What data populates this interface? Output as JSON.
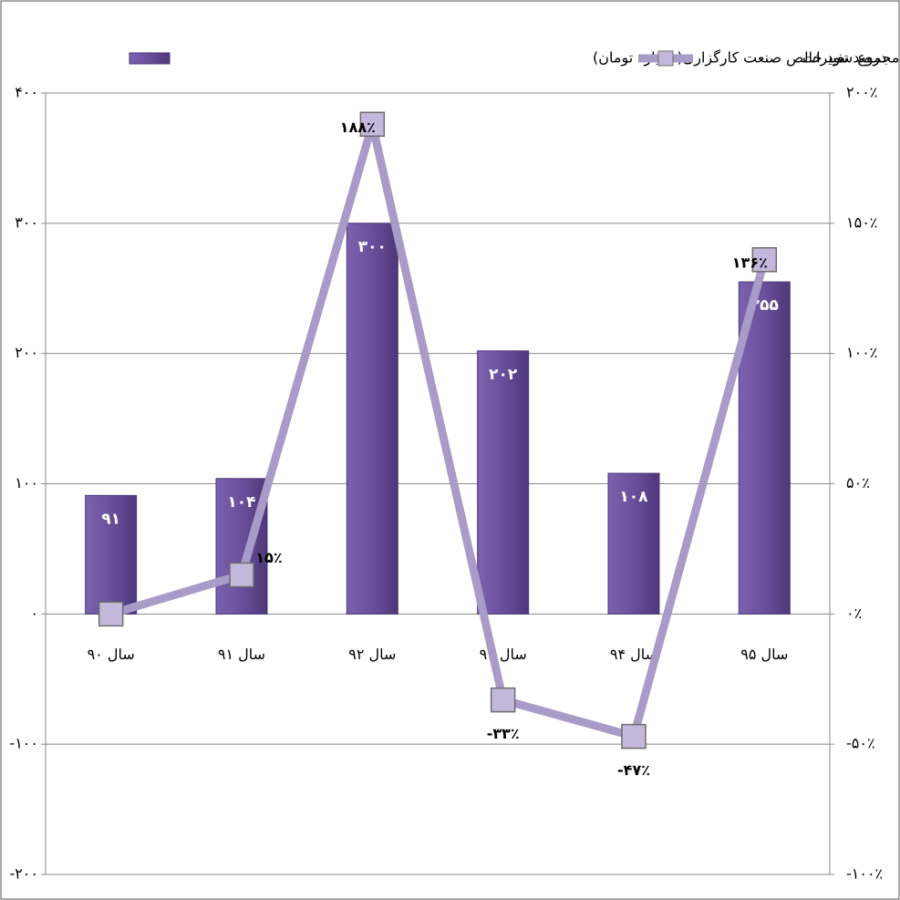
{
  "chart_data": {
    "type": "bar_line",
    "categories": [
      "سال ۹۰",
      "سال ۹۱",
      "سال ۹۲",
      "سال ۹۳",
      "سال ۹۴",
      "سال ۹۵"
    ],
    "series": [
      {
        "name": "مجموع سود خالص صنعت کارگزاری(میلیارد تومان)",
        "type": "bar",
        "color": "#6a4f9c",
        "values": [
          91,
          104,
          300,
          202,
          108,
          255
        ],
        "value_labels": [
          "۹۱",
          "۱۰۴",
          "۳۰۰",
          "۲۰۲",
          "۱۰۸",
          "۲۵۵"
        ]
      },
      {
        "name": "درصد تغییرات",
        "type": "line",
        "axis": "y2",
        "color": "#a99bc8",
        "values": [
          0,
          15,
          188,
          -33,
          -47,
          136
        ],
        "value_labels": [
          null,
          "۱۵٪",
          "۱۸۸٪",
          "-۳۳٪",
          "-۴۷٪",
          "۱۳۶٪"
        ]
      }
    ],
    "ylim": [
      -200,
      400
    ],
    "yticks": [
      {
        "value": -200,
        "label": "-۲۰۰"
      },
      {
        "value": -100,
        "label": "-۱۰۰"
      },
      {
        "value": 0,
        "label": "۰"
      },
      {
        "value": 100,
        "label": "۱۰۰"
      },
      {
        "value": 200,
        "label": "۲۰۰"
      },
      {
        "value": 300,
        "label": "۳۰۰"
      },
      {
        "value": 400,
        "label": "۴۰۰"
      }
    ],
    "y2lim": [
      -100,
      200
    ],
    "y2ticks": [
      {
        "value": -100,
        "label": "-۱۰۰٪"
      },
      {
        "value": -50,
        "label": "-۵۰٪"
      },
      {
        "value": 0,
        "label": "۰٪"
      },
      {
        "value": 50,
        "label": "۵۰٪"
      },
      {
        "value": 100,
        "label": "۱۰۰٪"
      },
      {
        "value": 150,
        "label": "۱۵۰٪"
      },
      {
        "value": 200,
        "label": "۲۰۰٪"
      }
    ],
    "grid": true,
    "legend": "top"
  }
}
